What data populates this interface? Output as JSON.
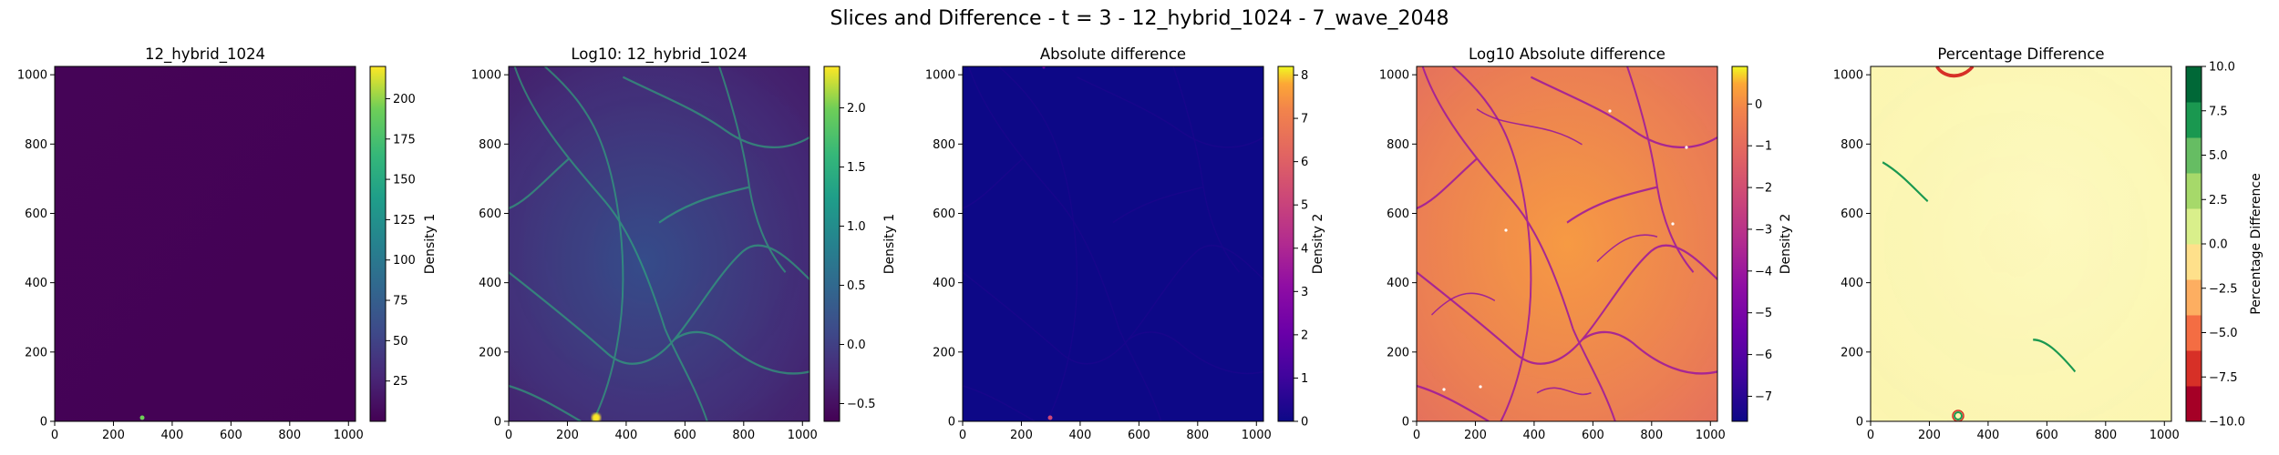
{
  "figure": {
    "title": "Slices and Difference - t = 3 - 12_hybrid_1024 - 7_wave_2048"
  },
  "chart_data": [
    {
      "type": "heatmap",
      "title": "12_hybrid_1024",
      "xlim": [
        0,
        1024
      ],
      "ylim": [
        0,
        1024
      ],
      "xticks": [
        0,
        200,
        400,
        600,
        800,
        1000
      ],
      "yticks": [
        0,
        200,
        400,
        600,
        800,
        1000
      ],
      "colormap": "viridis",
      "colorbar": {
        "label": "Density 1",
        "range": [
          0,
          220
        ],
        "ticks": [
          25,
          50,
          75,
          100,
          125,
          150,
          175,
          200
        ],
        "tick_labels": [
          "25",
          "50",
          "75",
          "100",
          "125",
          "150",
          "175",
          "200"
        ]
      }
    },
    {
      "type": "heatmap",
      "title": "Log10: 12_hybrid_1024",
      "xlim": [
        0,
        1024
      ],
      "ylim": [
        0,
        1024
      ],
      "xticks": [
        0,
        200,
        400,
        600,
        800,
        1000
      ],
      "yticks": [
        0,
        200,
        400,
        600,
        800,
        1000
      ],
      "colormap": "viridis",
      "colorbar": {
        "label": "Density 1",
        "range": [
          -0.65,
          2.35
        ],
        "ticks": [
          -0.5,
          0.0,
          0.5,
          1.0,
          1.5,
          2.0
        ],
        "tick_labels": [
          "−0.5",
          "0.0",
          "0.5",
          "1.0",
          "1.5",
          "2.0"
        ]
      }
    },
    {
      "type": "heatmap",
      "title": "Absolute difference",
      "xlim": [
        0,
        1024
      ],
      "ylim": [
        0,
        1024
      ],
      "xticks": [
        0,
        200,
        400,
        600,
        800,
        1000
      ],
      "yticks": [
        0,
        200,
        400,
        600,
        800,
        1000
      ],
      "colormap": "plasma",
      "colorbar": {
        "label": "Density 2",
        "range": [
          0,
          8.2
        ],
        "ticks": [
          0,
          1,
          2,
          3,
          4,
          5,
          6,
          7,
          8
        ],
        "tick_labels": [
          "0",
          "1",
          "2",
          "3",
          "4",
          "5",
          "6",
          "7",
          "8"
        ]
      }
    },
    {
      "type": "heatmap",
      "title": "Log10 Absolute difference",
      "xlim": [
        0,
        1024
      ],
      "ylim": [
        0,
        1024
      ],
      "xticks": [
        0,
        200,
        400,
        600,
        800,
        1000
      ],
      "yticks": [
        0,
        200,
        400,
        600,
        800,
        1000
      ],
      "colormap": "plasma",
      "colorbar": {
        "label": "Density 2",
        "range": [
          -7.6,
          0.9
        ],
        "ticks": [
          -7,
          -6,
          -5,
          -4,
          -3,
          -2,
          -1,
          0
        ],
        "tick_labels": [
          "−7",
          "−6",
          "−5",
          "−4",
          "−3",
          "−2",
          "−1",
          "0"
        ]
      }
    },
    {
      "type": "heatmap",
      "title": "Percentage Difference",
      "xlim": [
        0,
        1024
      ],
      "ylim": [
        0,
        1024
      ],
      "xticks": [
        0,
        200,
        400,
        600,
        800,
        1000
      ],
      "yticks": [
        0,
        200,
        400,
        600,
        800,
        1000
      ],
      "colormap": "RdYlGn",
      "colorbar": {
        "label": "Percentage Difference",
        "range": [
          -10,
          10
        ],
        "ticks": [
          -10.0,
          -7.5,
          -5.0,
          -2.5,
          0.0,
          2.5,
          5.0,
          7.5,
          10.0
        ],
        "tick_labels": [
          "−10.0",
          "−7.5",
          "−5.0",
          "−2.5",
          "0.0",
          "2.5",
          "5.0",
          "7.5",
          "10.0"
        ]
      }
    }
  ]
}
